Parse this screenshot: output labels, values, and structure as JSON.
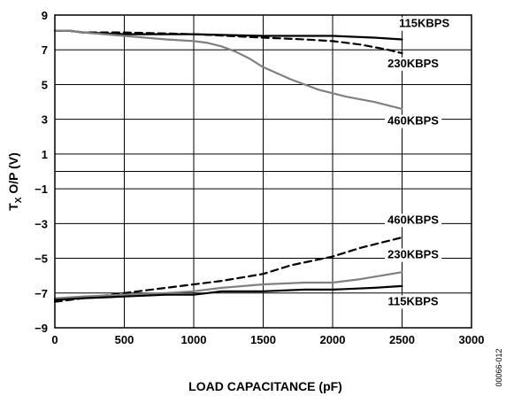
{
  "chart_data": {
    "type": "line",
    "xlabel": "LOAD CAPACITANCE (pF)",
    "ylabel_main": "T",
    "ylabel_sub": "X",
    "ylabel_rest": " O/P (V)",
    "xlim": [
      0,
      3000
    ],
    "ylim": [
      -9,
      9
    ],
    "x_ticks": [
      0,
      500,
      1000,
      1500,
      2000,
      2500,
      3000
    ],
    "x_tick_labels": [
      "0",
      "500",
      "1000",
      "1500",
      "2000",
      "2500",
      "3000"
    ],
    "y_ticks": [
      9,
      7,
      5,
      3,
      1,
      -1,
      -3,
      -5,
      -7,
      -9
    ],
    "y_tick_labels": [
      "9",
      "7",
      "5",
      "3",
      "1",
      "−1",
      "−3",
      "−5",
      "−7",
      "−9"
    ],
    "extra_hlines": [
      0
    ],
    "grid": true,
    "figure_id": "00066-012",
    "series": [
      {
        "name": "115KBPS",
        "color": "#000000",
        "dash": "none",
        "x": [
          0,
          100,
          200,
          500,
          1000,
          1500,
          2000,
          2300,
          2500
        ],
        "y": [
          8.1,
          8.1,
          8.0,
          7.9,
          7.9,
          7.8,
          7.8,
          7.7,
          7.6
        ]
      },
      {
        "name": "230KBPS",
        "color": "#000000",
        "dash": "dashed",
        "x": [
          0,
          100,
          200,
          500,
          1000,
          1500,
          1800,
          2000,
          2200,
          2400,
          2500
        ],
        "y": [
          8.1,
          8.1,
          8.0,
          8.0,
          7.9,
          7.7,
          7.6,
          7.5,
          7.3,
          7.0,
          6.8
        ]
      },
      {
        "name": "460KBPS",
        "color": "#808080",
        "dash": "none",
        "x": [
          0,
          100,
          200,
          500,
          800,
          1000,
          1100,
          1200,
          1300,
          1400,
          1500,
          1700,
          1900,
          2100,
          2300,
          2500
        ],
        "y": [
          8.1,
          8.1,
          8.0,
          7.8,
          7.6,
          7.5,
          7.4,
          7.2,
          6.9,
          6.5,
          6.0,
          5.3,
          4.7,
          4.3,
          4.0,
          3.6
        ]
      },
      {
        "name": "460KBPS",
        "color": "#000000",
        "dash": "dashed",
        "x": [
          0,
          200,
          500,
          800,
          1000,
          1200,
          1500,
          1700,
          2000,
          2200,
          2500
        ],
        "y": [
          -7.5,
          -7.3,
          -7.0,
          -6.7,
          -6.5,
          -6.3,
          -5.9,
          -5.4,
          -4.9,
          -4.4,
          -3.8
        ]
      },
      {
        "name": "230KBPS",
        "color": "#808080",
        "dash": "none",
        "x": [
          0,
          200,
          500,
          800,
          1000,
          1200,
          1500,
          1800,
          2000,
          2200,
          2500
        ],
        "y": [
          -7.3,
          -7.2,
          -7.1,
          -7.0,
          -6.9,
          -6.7,
          -6.5,
          -6.4,
          -6.4,
          -6.2,
          -5.8
        ]
      },
      {
        "name": "115KBPS",
        "color": "#000000",
        "dash": "none",
        "x": [
          0,
          200,
          500,
          800,
          1000,
          1100,
          1200,
          1500,
          1800,
          2000,
          2300,
          2500
        ],
        "y": [
          -7.4,
          -7.3,
          -7.2,
          -7.1,
          -7.1,
          -7.0,
          -6.9,
          -6.9,
          -6.8,
          -6.8,
          -6.7,
          -6.6
        ]
      }
    ],
    "series_labels": [
      {
        "text": "115KBPS",
        "x": 2660,
        "y": 8.3
      },
      {
        "text": "230KBPS",
        "x": 2580,
        "y": 6.0
      },
      {
        "text": "460KBPS",
        "x": 2580,
        "y": 2.7
      },
      {
        "text": "460KBPS",
        "x": 2580,
        "y": -3.0
      },
      {
        "text": "230KBPS",
        "x": 2580,
        "y": -5.0
      },
      {
        "text": "115KBPS",
        "x": 2580,
        "y": -7.7
      }
    ]
  }
}
